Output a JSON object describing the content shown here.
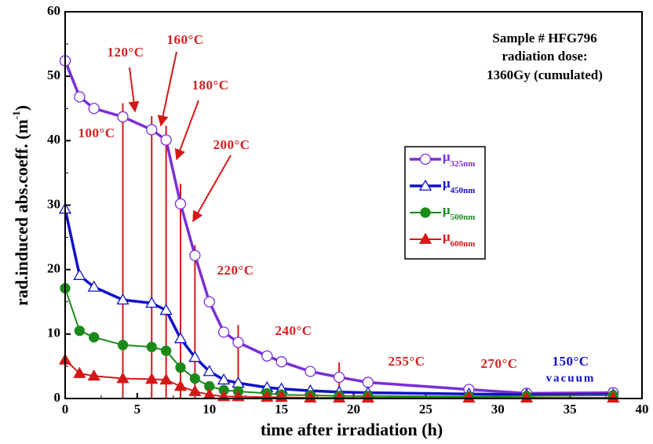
{
  "chart_data": {
    "type": "line",
    "x_label": "time after irradiation (h)",
    "y_label": "rad.induced abs.coeff. (m",
    "y_label_sup": "-1",
    "y_label_end": ")",
    "x": [
      0,
      1,
      2,
      4,
      6,
      7,
      8,
      9,
      10,
      11,
      12,
      14,
      15,
      17,
      19,
      21,
      28,
      32,
      38
    ],
    "series": [
      {
        "name": "μ",
        "subscript": "325nm",
        "color": "#7a2fd6",
        "marker": "circle-open",
        "values": [
          52.4,
          46.8,
          45.0,
          43.7,
          41.7,
          40.1,
          30.2,
          22.2,
          15.0,
          10.3,
          8.7,
          6.6,
          5.7,
          4.2,
          3.3,
          2.5,
          1.4,
          0.8,
          0.9
        ]
      },
      {
        "name": "μ",
        "subscript": "450nm",
        "color": "#1010c8",
        "marker": "triangle-open",
        "values": [
          29.4,
          19.1,
          17.3,
          15.3,
          14.8,
          13.7,
          9.3,
          6.4,
          4.2,
          2.9,
          2.4,
          1.7,
          1.5,
          1.2,
          1.0,
          0.9,
          0.7,
          0.6,
          0.6
        ]
      },
      {
        "name": "μ",
        "subscript": "500nm",
        "color": "#1a8a1a",
        "marker": "circle-filled",
        "values": [
          17.1,
          10.5,
          9.5,
          8.3,
          8.0,
          7.4,
          4.8,
          3.1,
          1.9,
          1.3,
          1.1,
          0.8,
          0.6,
          0.5,
          0.4,
          0.4,
          0.3,
          0.4,
          0.5
        ]
      },
      {
        "name": "μ",
        "subscript": "600nm",
        "color": "#d41818",
        "marker": "triangle-filled",
        "values": [
          6.0,
          3.9,
          3.5,
          3.1,
          3.0,
          2.9,
          1.9,
          1.1,
          0.6,
          0.3,
          0.3,
          0.2,
          0.2,
          0.1,
          0.1,
          0.1,
          0.1,
          0.1,
          0.1
        ]
      }
    ],
    "marker_lines": {
      "color": "#d41818",
      "x": [
        4,
        6,
        7,
        8,
        9,
        12,
        19
      ],
      "top": [
        45.8,
        43.8,
        42.3,
        33.3,
        23.8,
        11.4,
        5.6
      ]
    },
    "annotations": [
      "100°C",
      "120°C",
      "160°C",
      "180°C",
      "200°C",
      "220°C",
      "240°C",
      "255°C",
      "270°C",
      "150°C",
      "vacuum"
    ],
    "annotation_color": "#d42020",
    "annotation_color_last": "#1010c8",
    "sample_text": [
      "Sample # HFG796",
      "radiation dose:",
      "1360Gy (cumulated)"
    ],
    "xlim": [
      0,
      40
    ],
    "xticks": [
      0,
      5,
      10,
      15,
      20,
      25,
      30,
      35,
      40
    ],
    "ylim": [
      0,
      60
    ],
    "yticks": [
      0,
      10,
      20,
      30,
      40,
      50,
      60
    ]
  }
}
